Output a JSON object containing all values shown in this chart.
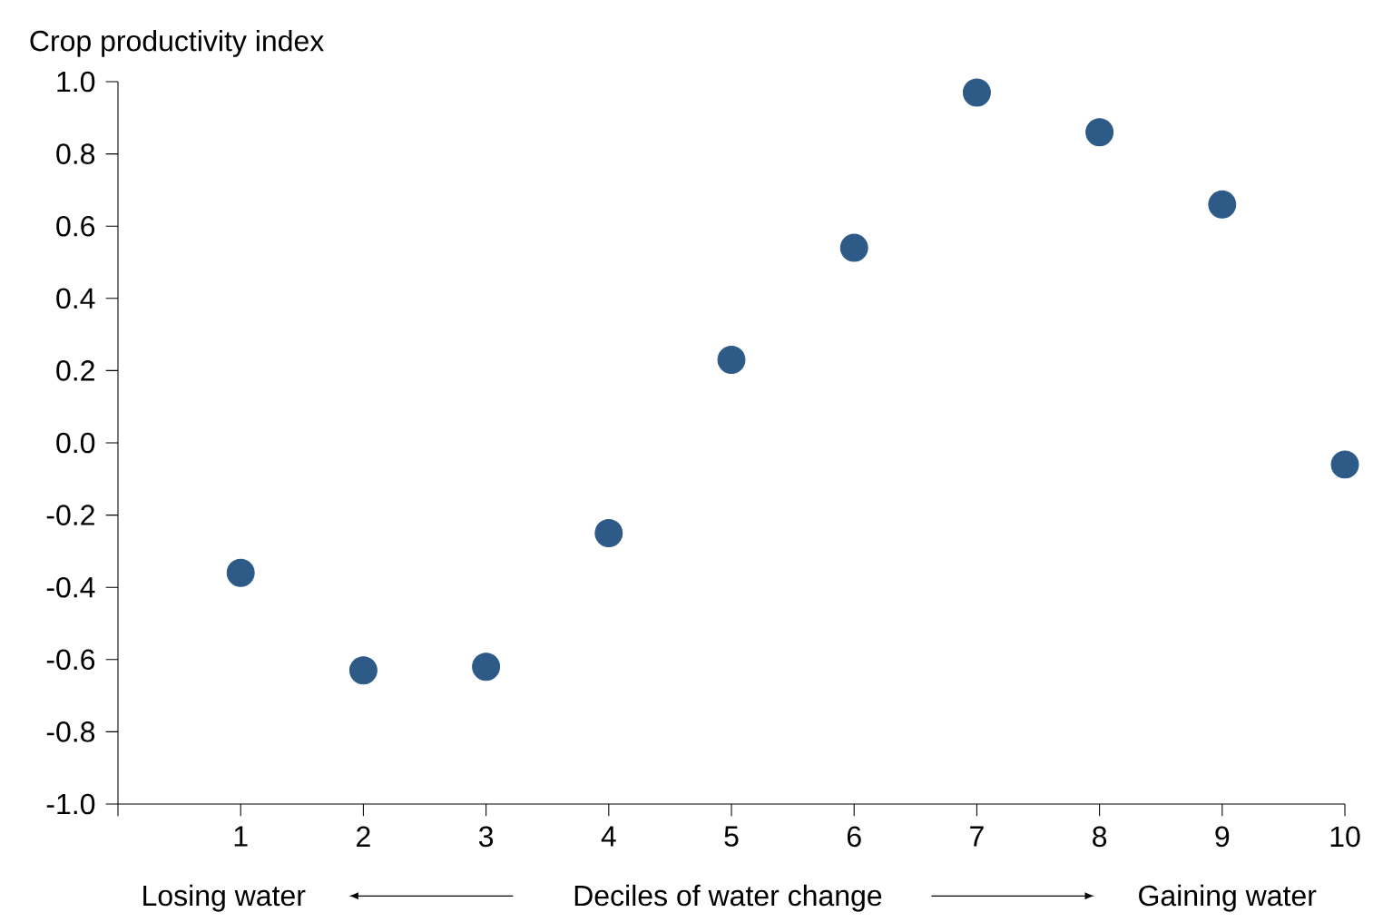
{
  "chart_data": {
    "type": "scatter",
    "ylabel": "Crop productivity index",
    "xlabel": "Deciles of water change",
    "annotations": [
      "Losing water",
      "Gaining water"
    ],
    "x": [
      1,
      2,
      3,
      4,
      5,
      6,
      7,
      8,
      9,
      10
    ],
    "series": [
      {
        "color": "#2e5a88",
        "values": [
          -0.36,
          -0.63,
          -0.62,
          -0.25,
          0.23,
          0.54,
          0.97,
          0.86,
          0.66,
          -0.06
        ]
      }
    ],
    "xlim": [
      0,
      10
    ],
    "xticks": [
      {
        "value": 0,
        "label": null
      },
      1,
      2,
      3,
      4,
      5,
      6,
      7,
      8,
      9,
      10
    ],
    "ylim": [
      -1,
      1
    ],
    "yticks": [
      {
        "value": -1,
        "label": "-1.0"
      },
      {
        "value": -0.8,
        "label": "-0.8"
      },
      {
        "value": -0.6,
        "label": "-0.6"
      },
      {
        "value": -0.4,
        "label": "-0.4"
      },
      {
        "value": -0.2,
        "label": "-0.2"
      },
      {
        "value": 0,
        "label": "0.0"
      },
      {
        "value": 0.2,
        "label": "0.2"
      },
      {
        "value": 0.4,
        "label": "0.4"
      },
      {
        "value": 0.6,
        "label": "0.6"
      },
      {
        "value": 0.8,
        "label": "0.8"
      },
      {
        "value": 1,
        "label": "1.0"
      }
    ],
    "marker": "circle",
    "grid": false
  }
}
